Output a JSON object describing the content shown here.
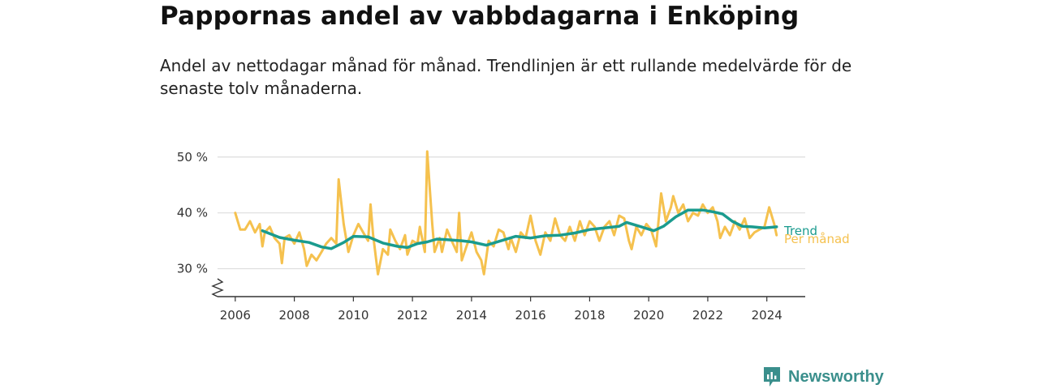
{
  "header": {
    "title": "Pappornas andel av vabbdagarna i Enköping",
    "subtitle": "Andel av nettodagar månad för månad. Trendlinjen är ett rullande medelvärde för de senaste tolv månaderna."
  },
  "brand": {
    "name": "Newsworthy",
    "icon": "bar-chart-logo-icon"
  },
  "colors": {
    "monthly": "#f5c14e",
    "trend": "#1a9b8e",
    "grid": "#dddddd",
    "axis": "#333333"
  },
  "chart_data": {
    "type": "line",
    "title": "Pappornas andel av vabbdagarna i Enköping",
    "xlabel": "",
    "ylabel": "",
    "xlim": [
      2005.4,
      2025.3
    ],
    "ylim": [
      25,
      52
    ],
    "y_axis_break": true,
    "grid": "horizontal",
    "y_ticks": [
      30,
      40,
      50
    ],
    "y_tick_labels": [
      "30 %",
      "40 %",
      "50 %"
    ],
    "x_ticks": [
      2006,
      2008,
      2010,
      2012,
      2014,
      2016,
      2018,
      2020,
      2022,
      2024
    ],
    "x_tick_labels": [
      "2006",
      "2008",
      "2010",
      "2012",
      "2014",
      "2016",
      "2018",
      "2020",
      "2022",
      "2024"
    ],
    "legend_placement": "inline-right",
    "series": [
      {
        "name": "Per månad",
        "color": "#f5c14e",
        "points": [
          [
            2006.0,
            40.0
          ],
          [
            2006.17,
            37.0
          ],
          [
            2006.33,
            37.0
          ],
          [
            2006.5,
            38.5
          ],
          [
            2006.67,
            36.5
          ],
          [
            2006.83,
            38.0
          ],
          [
            2006.92,
            34.0
          ],
          [
            2007.0,
            36.5
          ],
          [
            2007.17,
            37.5
          ],
          [
            2007.33,
            35.5
          ],
          [
            2007.5,
            34.5
          ],
          [
            2007.58,
            31.0
          ],
          [
            2007.67,
            35.5
          ],
          [
            2007.83,
            36.0
          ],
          [
            2008.0,
            34.5
          ],
          [
            2008.17,
            36.5
          ],
          [
            2008.33,
            33.5
          ],
          [
            2008.42,
            30.5
          ],
          [
            2008.58,
            32.5
          ],
          [
            2008.75,
            31.5
          ],
          [
            2008.92,
            33.0
          ],
          [
            2009.08,
            34.5
          ],
          [
            2009.25,
            35.5
          ],
          [
            2009.42,
            34.5
          ],
          [
            2009.5,
            46.0
          ],
          [
            2009.67,
            38.0
          ],
          [
            2009.83,
            33.0
          ],
          [
            2010.0,
            36.0
          ],
          [
            2010.17,
            38.0
          ],
          [
            2010.33,
            36.5
          ],
          [
            2010.5,
            35.0
          ],
          [
            2010.58,
            41.5
          ],
          [
            2010.67,
            36.0
          ],
          [
            2010.83,
            29.0
          ],
          [
            2011.0,
            33.5
          ],
          [
            2011.17,
            32.5
          ],
          [
            2011.25,
            37.0
          ],
          [
            2011.42,
            35.0
          ],
          [
            2011.58,
            33.5
          ],
          [
            2011.75,
            36.0
          ],
          [
            2011.83,
            32.5
          ],
          [
            2012.0,
            35.0
          ],
          [
            2012.17,
            34.5
          ],
          [
            2012.25,
            37.5
          ],
          [
            2012.42,
            33.0
          ],
          [
            2012.5,
            51.0
          ],
          [
            2012.67,
            38.0
          ],
          [
            2012.75,
            33.0
          ],
          [
            2012.92,
            35.5
          ],
          [
            2013.0,
            33.0
          ],
          [
            2013.17,
            37.0
          ],
          [
            2013.33,
            35.0
          ],
          [
            2013.5,
            33.0
          ],
          [
            2013.58,
            40.0
          ],
          [
            2013.67,
            31.5
          ],
          [
            2013.83,
            34.0
          ],
          [
            2014.0,
            36.5
          ],
          [
            2014.17,
            33.0
          ],
          [
            2014.33,
            31.5
          ],
          [
            2014.42,
            29.0
          ],
          [
            2014.58,
            35.0
          ],
          [
            2014.75,
            34.0
          ],
          [
            2014.92,
            37.0
          ],
          [
            2015.08,
            36.5
          ],
          [
            2015.25,
            33.5
          ],
          [
            2015.33,
            35.5
          ],
          [
            2015.5,
            33.0
          ],
          [
            2015.67,
            36.5
          ],
          [
            2015.83,
            35.5
          ],
          [
            2016.0,
            39.5
          ],
          [
            2016.17,
            35.0
          ],
          [
            2016.33,
            32.5
          ],
          [
            2016.5,
            36.5
          ],
          [
            2016.67,
            35.0
          ],
          [
            2016.83,
            39.0
          ],
          [
            2017.0,
            36.0
          ],
          [
            2017.17,
            35.0
          ],
          [
            2017.33,
            37.5
          ],
          [
            2017.5,
            35.0
          ],
          [
            2017.67,
            38.5
          ],
          [
            2017.83,
            36.0
          ],
          [
            2018.0,
            38.5
          ],
          [
            2018.17,
            37.5
          ],
          [
            2018.33,
            35.0
          ],
          [
            2018.5,
            37.5
          ],
          [
            2018.67,
            38.5
          ],
          [
            2018.83,
            36.0
          ],
          [
            2019.0,
            39.5
          ],
          [
            2019.17,
            39.0
          ],
          [
            2019.33,
            35.0
          ],
          [
            2019.42,
            33.5
          ],
          [
            2019.58,
            37.5
          ],
          [
            2019.75,
            36.0
          ],
          [
            2019.92,
            38.0
          ],
          [
            2020.08,
            37.0
          ],
          [
            2020.25,
            34.0
          ],
          [
            2020.42,
            43.5
          ],
          [
            2020.58,
            38.5
          ],
          [
            2020.75,
            41.0
          ],
          [
            2020.83,
            43.0
          ],
          [
            2021.0,
            40.0
          ],
          [
            2021.17,
            41.5
          ],
          [
            2021.33,
            38.5
          ],
          [
            2021.5,
            40.0
          ],
          [
            2021.67,
            39.5
          ],
          [
            2021.83,
            41.5
          ],
          [
            2022.0,
            40.0
          ],
          [
            2022.17,
            41.0
          ],
          [
            2022.33,
            38.5
          ],
          [
            2022.42,
            35.5
          ],
          [
            2022.58,
            37.5
          ],
          [
            2022.75,
            36.0
          ],
          [
            2022.92,
            38.5
          ],
          [
            2023.08,
            37.0
          ],
          [
            2023.25,
            39.0
          ],
          [
            2023.42,
            35.5
          ],
          [
            2023.58,
            36.5
          ],
          [
            2023.75,
            37.0
          ],
          [
            2023.92,
            37.5
          ],
          [
            2024.08,
            41.0
          ],
          [
            2024.25,
            38.0
          ],
          [
            2024.33,
            36.0
          ]
        ]
      },
      {
        "name": "Trend",
        "color": "#1a9b8e",
        "points": [
          [
            2006.92,
            36.8
          ],
          [
            2007.5,
            35.6
          ],
          [
            2008.0,
            35.1
          ],
          [
            2008.5,
            34.7
          ],
          [
            2008.92,
            33.9
          ],
          [
            2009.25,
            33.6
          ],
          [
            2009.67,
            34.7
          ],
          [
            2010.0,
            35.8
          ],
          [
            2010.5,
            35.7
          ],
          [
            2011.0,
            34.6
          ],
          [
            2011.5,
            34.0
          ],
          [
            2011.83,
            33.8
          ],
          [
            2012.17,
            34.5
          ],
          [
            2012.5,
            34.8
          ],
          [
            2012.83,
            35.3
          ],
          [
            2013.17,
            35.2
          ],
          [
            2013.67,
            35.0
          ],
          [
            2014.0,
            34.8
          ],
          [
            2014.5,
            34.2
          ],
          [
            2015.0,
            35.0
          ],
          [
            2015.5,
            35.8
          ],
          [
            2016.0,
            35.5
          ],
          [
            2016.5,
            35.9
          ],
          [
            2017.0,
            36.0
          ],
          [
            2017.5,
            36.4
          ],
          [
            2018.0,
            37.0
          ],
          [
            2018.5,
            37.3
          ],
          [
            2019.0,
            37.6
          ],
          [
            2019.25,
            38.3
          ],
          [
            2019.75,
            37.5
          ],
          [
            2020.17,
            36.8
          ],
          [
            2020.5,
            37.6
          ],
          [
            2020.92,
            39.3
          ],
          [
            2021.33,
            40.5
          ],
          [
            2021.83,
            40.5
          ],
          [
            2022.17,
            40.2
          ],
          [
            2022.5,
            39.8
          ],
          [
            2022.83,
            38.5
          ],
          [
            2023.17,
            37.6
          ],
          [
            2023.5,
            37.5
          ],
          [
            2023.92,
            37.3
          ],
          [
            2024.33,
            37.5
          ]
        ]
      }
    ],
    "legend": {
      "trend": "Trend",
      "monthly": "Per månad"
    }
  }
}
